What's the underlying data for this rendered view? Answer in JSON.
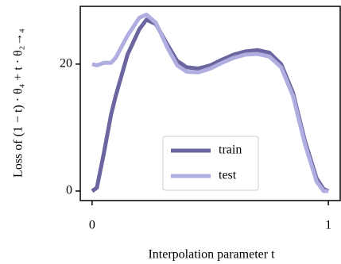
{
  "chart_data": {
    "type": "line",
    "x_label": "Interpolation parameter t",
    "y_label": "Loss of (1 − t) · θ₄ + t · θ₂→₄",
    "x": [
      0,
      0.02,
      0.05,
      0.08,
      0.1,
      0.15,
      0.2,
      0.23,
      0.27,
      0.32,
      0.36,
      0.4,
      0.45,
      0.5,
      0.55,
      0.6,
      0.65,
      0.7,
      0.75,
      0.8,
      0.85,
      0.9,
      0.95,
      0.98,
      1.0
    ],
    "series": [
      {
        "name": "train",
        "color": "#6b66a0",
        "values": [
          0,
          0.5,
          6,
          12,
          15,
          21.5,
          25.5,
          27,
          26.3,
          23,
          20.5,
          19.5,
          19.3,
          19.8,
          20.7,
          21.5,
          22,
          22.2,
          21.8,
          20,
          15.5,
          8,
          2,
          0.3,
          0
        ]
      },
      {
        "name": "test",
        "color": "#b0aee0",
        "values": [
          20,
          19.8,
          20.2,
          20.2,
          21,
          24.5,
          27.3,
          27.8,
          26.5,
          22.5,
          19.8,
          18.8,
          18.7,
          19.3,
          20.2,
          21,
          21.5,
          21.6,
          21.2,
          19.5,
          15,
          7.5,
          1.5,
          0,
          0
        ]
      }
    ],
    "xlim": [
      -0.05,
      1.05
    ],
    "xticks": [
      0,
      1
    ],
    "ylim": [
      -1.5,
      29.1
    ],
    "yticks": [
      0,
      20
    ],
    "legend": "lower center"
  }
}
